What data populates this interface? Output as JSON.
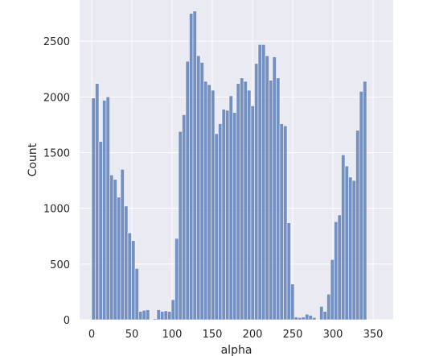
{
  "chart_data": {
    "type": "bar",
    "style": "histogram",
    "xlabel": "alpha",
    "ylabel": "Count",
    "xlim": [
      -15,
      375
    ],
    "ylim": [
      0,
      2870
    ],
    "xticks": [
      0,
      50,
      100,
      150,
      200,
      250,
      300,
      350
    ],
    "yticks": [
      0,
      500,
      1000,
      1500,
      2000,
      2500
    ],
    "grid": true,
    "background_color": "#eaeaf2",
    "bar_color": "#4c72b0",
    "bin_width": 4.5,
    "bin_start": 0,
    "values": [
      1990,
      2120,
      1600,
      1970,
      2000,
      1300,
      1260,
      1100,
      1350,
      1020,
      780,
      710,
      460,
      75,
      85,
      90,
      0,
      10,
      90,
      75,
      80,
      75,
      180,
      730,
      1690,
      1840,
      2320,
      2750,
      2770,
      2370,
      2310,
      2140,
      2110,
      2060,
      1670,
      1760,
      1890,
      1880,
      2010,
      1860,
      2120,
      2170,
      2140,
      2060,
      1920,
      2300,
      2470,
      2470,
      2370,
      2150,
      2360,
      2170,
      1760,
      1740,
      870,
      320,
      25,
      20,
      25,
      50,
      40,
      20,
      0,
      120,
      75,
      230,
      540,
      880,
      940,
      1480,
      1380,
      1280,
      1250,
      1700,
      2050,
      2140
    ]
  }
}
